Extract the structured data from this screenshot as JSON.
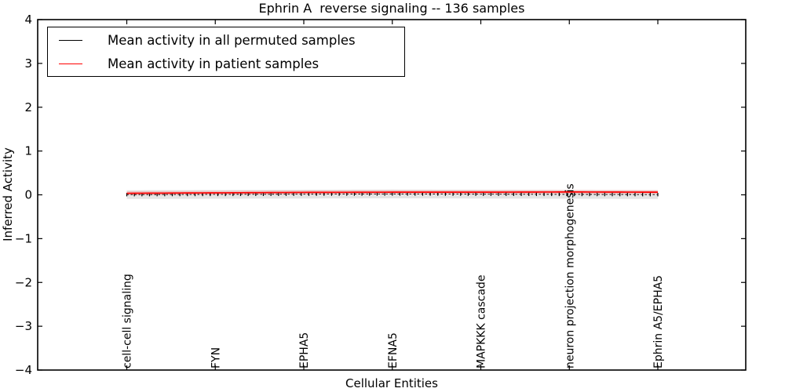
{
  "figure": {
    "title": "Ephrin A  reverse signaling -- 136 samples",
    "xlabel": "Cellular Entities",
    "ylabel": "Inferred Activity"
  },
  "legend": {
    "position": "upper left",
    "entries": [
      {
        "label": "Mean activity in all permuted samples",
        "color": "#000000"
      },
      {
        "label": "Mean activity in patient samples",
        "color": "#ff0000"
      }
    ]
  },
  "chart_data": {
    "type": "line",
    "title": "Ephrin A  reverse signaling -- 136 samples",
    "xlabel": "Cellular Entities",
    "ylabel": "Inferred Activity",
    "ylim": [
      -4,
      4
    ],
    "ytick_values": [
      4,
      3,
      2,
      1,
      0,
      -1,
      -2,
      -3,
      -4
    ],
    "ytick_labels": [
      "4",
      "3",
      "2",
      "1",
      "0",
      "−1",
      "−2",
      "−3",
      "−4"
    ],
    "categories": [
      "cell-cell signaling",
      "FYN",
      "EPHA5",
      "EFNA5",
      "MAPKKK cascade",
      "neuron projection morphogenesis",
      "Ephrin A5/EPHA5"
    ],
    "n_points": 71,
    "grid": false,
    "legend_position": "upper left",
    "series": [
      {
        "name": "Mean activity in all permuted samples",
        "color": "#000000",
        "style": "dashed_with_tick_markers",
        "values_at_categories": [
          0.005,
          0.01,
          0.015,
          0.02,
          0.015,
          0.01,
          0.005
        ],
        "band_halfwidth": 0.1,
        "band_color": "#000000",
        "band_opacity": 0.1
      },
      {
        "name": "Mean activity in patient samples",
        "color": "#ff0000",
        "style": "solid",
        "values_at_categories": [
          0.035,
          0.045,
          0.055,
          0.06,
          0.06,
          0.065,
          0.06
        ],
        "band_halfwidth": 0.045,
        "band_color": "#ff0000",
        "band_opacity": 0.15
      }
    ]
  }
}
